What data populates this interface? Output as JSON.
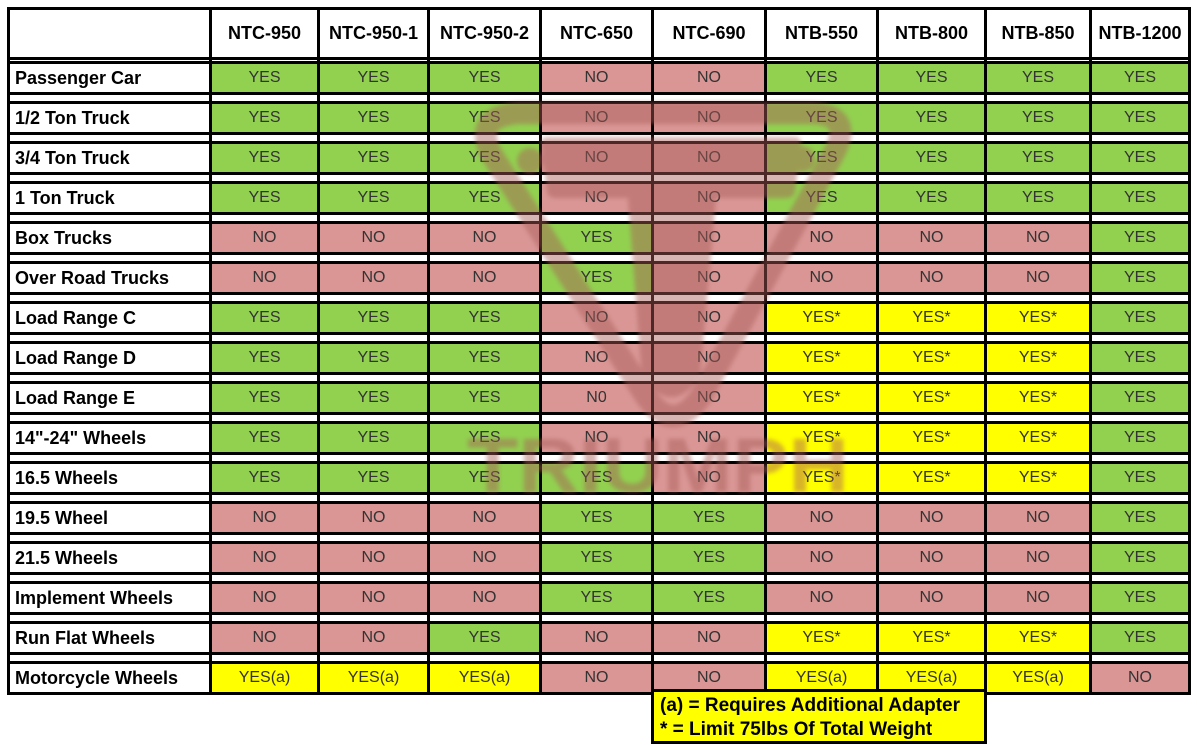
{
  "chart_data": {
    "type": "table",
    "columns": [
      "NTC-950",
      "NTC-950-1",
      "NTC-950-2",
      "NTC-650",
      "NTC-690",
      "NTB-550",
      "NTB-800",
      "NTB-850",
      "NTB-1200"
    ],
    "rows": [
      {
        "label": "Passenger Car",
        "values": [
          "YES",
          "YES",
          "YES",
          "NO",
          "NO",
          "YES",
          "YES",
          "YES",
          "YES"
        ]
      },
      {
        "label": "1/2 Ton Truck",
        "values": [
          "YES",
          "YES",
          "YES",
          "NO",
          "NO",
          "YES",
          "YES",
          "YES",
          "YES"
        ]
      },
      {
        "label": "3/4 Ton Truck",
        "values": [
          "YES",
          "YES",
          "YES",
          "NO",
          "NO",
          "YES",
          "YES",
          "YES",
          "YES"
        ]
      },
      {
        "label": "1 Ton Truck",
        "values": [
          "YES",
          "YES",
          "YES",
          "NO",
          "NO",
          "YES",
          "YES",
          "YES",
          "YES"
        ]
      },
      {
        "label": "Box Trucks",
        "values": [
          "NO",
          "NO",
          "NO",
          "YES",
          "NO",
          "NO",
          "NO",
          "NO",
          "YES"
        ]
      },
      {
        "label": "Over Road Trucks",
        "values": [
          "NO",
          "NO",
          "NO",
          "YES",
          "NO",
          "NO",
          "NO",
          "NO",
          "YES"
        ]
      },
      {
        "label": "Load Range C",
        "values": [
          "YES",
          "YES",
          "YES",
          "NO",
          "NO",
          "YES*",
          "YES*",
          "YES*",
          "YES"
        ]
      },
      {
        "label": "Load Range D",
        "values": [
          "YES",
          "YES",
          "YES",
          "NO",
          "NO",
          "YES*",
          "YES*",
          "YES*",
          "YES"
        ]
      },
      {
        "label": "Load Range E",
        "values": [
          "YES",
          "YES",
          "YES",
          "N0",
          "NO",
          "YES*",
          "YES*",
          "YES*",
          "YES"
        ]
      },
      {
        "label": "14\"-24\" Wheels",
        "values": [
          "YES",
          "YES",
          "YES",
          "NO",
          "NO",
          "YES*",
          "YES*",
          "YES*",
          "YES"
        ]
      },
      {
        "label": "16.5 Wheels",
        "values": [
          "YES",
          "YES",
          "YES",
          "YES",
          "NO",
          "YES*",
          "YES*",
          "YES*",
          "YES"
        ]
      },
      {
        "label": "19.5 Wheel",
        "values": [
          "NO",
          "NO",
          "NO",
          "YES",
          "YES",
          "NO",
          "NO",
          "NO",
          "YES"
        ]
      },
      {
        "label": "21.5 Wheels",
        "values": [
          "NO",
          "NO",
          "NO",
          "YES",
          "YES",
          "NO",
          "NO",
          "NO",
          "YES"
        ]
      },
      {
        "label": "Implement Wheels",
        "values": [
          "NO",
          "NO",
          "NO",
          "YES",
          "YES",
          "NO",
          "NO",
          "NO",
          "YES"
        ]
      },
      {
        "label": "Run Flat Wheels",
        "values": [
          "NO",
          "NO",
          "YES",
          "NO",
          "NO",
          "YES*",
          "YES*",
          "YES*",
          "YES"
        ]
      },
      {
        "label": "Motorcycle Wheels",
        "values": [
          "YES(a)",
          "YES(a)",
          "YES(a)",
          "NO",
          "NO",
          "YES(a)",
          "YES(a)",
          "YES(a)",
          "NO"
        ]
      }
    ],
    "notes": [
      "(a) = Requires Additional Adapter",
      "* = Limit 75lbs Of Total Weight"
    ],
    "cell_styles": {
      "YES": "#92D050",
      "NO": "#D99694",
      "N0": "#D99694",
      "YES*": "#FFFF00",
      "YES(a)": "#FFFF00"
    },
    "layout_hints": {
      "grid": "on",
      "legend_position": "bottom-right"
    }
  },
  "watermark": {
    "text": "TRIUMPH"
  },
  "colors": {
    "yes_green": "#92D050",
    "no_pink": "#D99694",
    "conditional_yellow": "#FFFF00",
    "note_yellow": "#FFFF00",
    "border_black": "#000000",
    "watermark_pink": "#A85C58",
    "cell_text": "#333333"
  }
}
